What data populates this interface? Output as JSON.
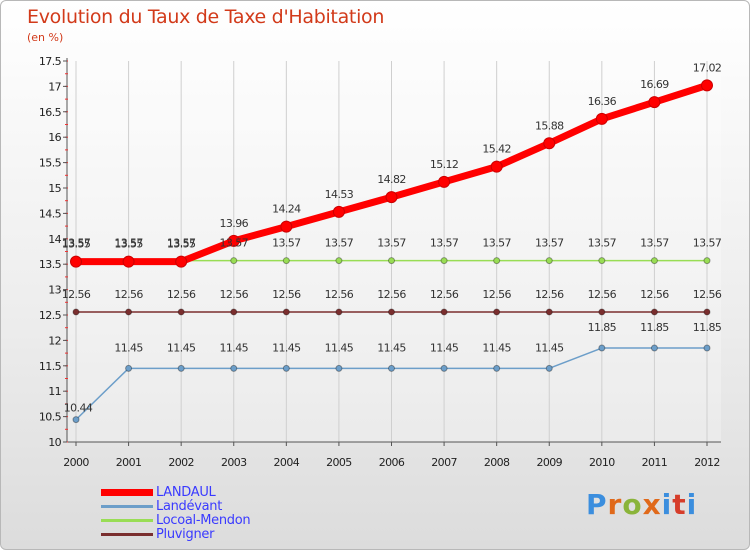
{
  "chart_data": {
    "type": "line",
    "title": "Evolution du Taux de Taxe d'Habitation",
    "ylabel": "(en %)",
    "xlabel": "",
    "ylim": [
      10,
      17.5
    ],
    "yticks": [
      "10",
      "10.5",
      "11",
      "11.5",
      "12",
      "12.5",
      "13",
      "13.5",
      "14",
      "14.5",
      "15",
      "15.5",
      "16",
      "16.5",
      "17",
      "17.5"
    ],
    "categories": [
      "2000",
      "2001",
      "2002",
      "2003",
      "2004",
      "2005",
      "2006",
      "2007",
      "2008",
      "2009",
      "2010",
      "2011",
      "2012"
    ],
    "grid": "vertical",
    "series": [
      {
        "name": "LANDAUL",
        "color": "#ff0000",
        "values": [
          13.55,
          13.55,
          13.55,
          13.96,
          14.24,
          14.53,
          14.82,
          15.12,
          15.42,
          15.88,
          16.36,
          16.69,
          17.02
        ],
        "labels": [
          "13.55",
          "13.55",
          "13.55",
          "13.96",
          "14.24",
          "14.53",
          "14.82",
          "15.12",
          "15.42",
          "15.88",
          "16.36",
          "16.69",
          "17.02"
        ]
      },
      {
        "name": "Landévant",
        "color": "#6c9ec9",
        "values": [
          10.44,
          11.45,
          11.45,
          11.45,
          11.45,
          11.45,
          11.45,
          11.45,
          11.45,
          11.45,
          11.85,
          11.85,
          11.85
        ],
        "labels": [
          "10.44",
          "11.45",
          "11.45",
          "11.45",
          "11.45",
          "11.45",
          "11.45",
          "11.45",
          "11.45",
          "11.45",
          "11.85",
          "11.85",
          "11.85"
        ]
      },
      {
        "name": "Locoal-Mendon",
        "color": "#99dd55",
        "values": [
          13.57,
          13.57,
          13.57,
          13.57,
          13.57,
          13.57,
          13.57,
          13.57,
          13.57,
          13.57,
          13.57,
          13.57,
          13.57
        ],
        "labels": [
          "13.57",
          "13.57",
          "13.57",
          "13.57",
          "13.57",
          "13.57",
          "13.57",
          "13.57",
          "13.57",
          "13.57",
          "13.57",
          "13.57",
          "13.57"
        ]
      },
      {
        "name": "Pluvigner",
        "color": "#7a2e2e",
        "values": [
          12.56,
          12.56,
          12.56,
          12.56,
          12.56,
          12.56,
          12.56,
          12.56,
          12.56,
          12.56,
          12.56,
          12.56,
          12.56
        ],
        "labels": [
          "12.56",
          "12.56",
          "12.56",
          "12.56",
          "12.56",
          "12.56",
          "12.56",
          "12.56",
          "12.56",
          "12.56",
          "12.56",
          "12.56",
          "12.56"
        ]
      }
    ]
  },
  "legend_colors": [
    "#ff0000",
    "#6c9ec9",
    "#99dd55",
    "#7a2e2e"
  ],
  "legend_text_color": "#3a3aff",
  "logo": {
    "text": "Proxiti",
    "colors": [
      "#3b8ede",
      "#e0691a",
      "#8ab43a",
      "#e0691a",
      "#3b8ede",
      "#d63d2a",
      "#3b8ede"
    ]
  }
}
